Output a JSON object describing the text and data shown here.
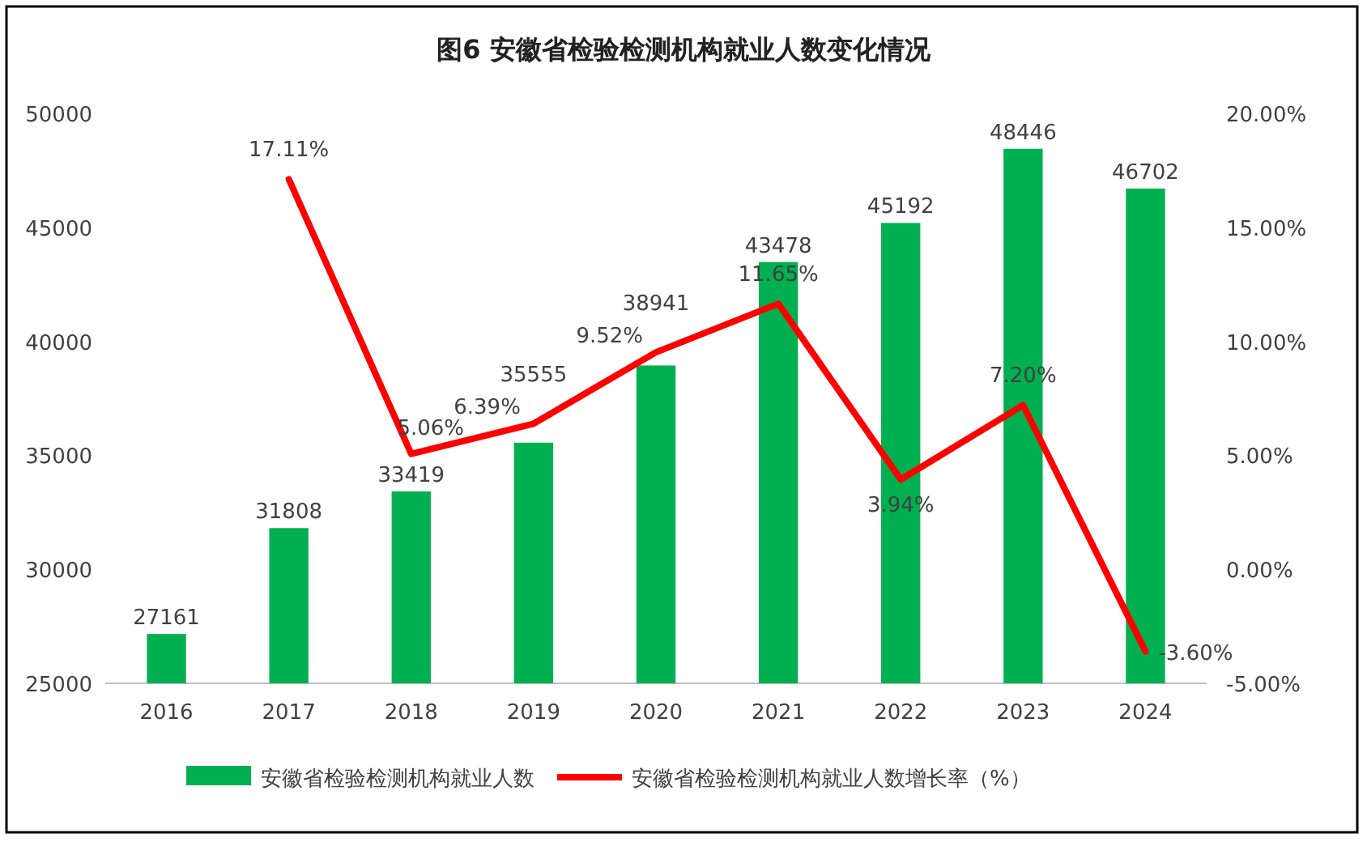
{
  "chart_data": {
    "type": "bar",
    "title": "**图6** 安徽省检验检测机构就业人数变化情况",
    "categories": [
      "2016",
      "2017",
      "2018",
      "2019",
      "2020",
      "2021",
      "2022",
      "2023",
      "2024"
    ],
    "series": [
      {
        "name": "安徽省检验检测机构就业人数",
        "color": "#00b050",
        "values": [
          27161,
          31808,
          33419,
          35555,
          38941,
          43478,
          45192,
          48446,
          46702
        ],
        "value_labels": [
          "27161",
          "31808",
          "33419",
          "35555",
          "38941",
          "43478",
          "45192",
          "48446",
          "46702"
        ]
      },
      {
        "name": "安徽省检验检测机构就业人数增长率（%）",
        "type": "line",
        "axis": "y2",
        "color": "#ff0000",
        "values": [
          null,
          17.11,
          5.06,
          6.39,
          9.52,
          11.65,
          3.94,
          7.2,
          -3.6
        ],
        "value_labels": [
          null,
          "17.11%",
          "5.06%",
          "6.39%",
          "9.52%",
          "11.65%",
          "3.94%",
          "7.20%",
          "-3.60%"
        ]
      }
    ],
    "ylim": [
      25000,
      50000
    ],
    "yticks": [
      25000,
      30000,
      35000,
      40000,
      45000,
      50000
    ],
    "y2lim": [
      -5,
      20
    ],
    "y2ticks": [
      {
        "value": -5,
        "label": "-5.00%"
      },
      {
        "value": 0,
        "label": "0.00%"
      },
      {
        "value": 5,
        "label": "5.00%"
      },
      {
        "value": 10,
        "label": "10.00%"
      },
      {
        "value": 15,
        "label": "15.00%"
      },
      {
        "value": 20,
        "label": "20.00%"
      }
    ],
    "legend": "bottom",
    "marker": "none"
  }
}
